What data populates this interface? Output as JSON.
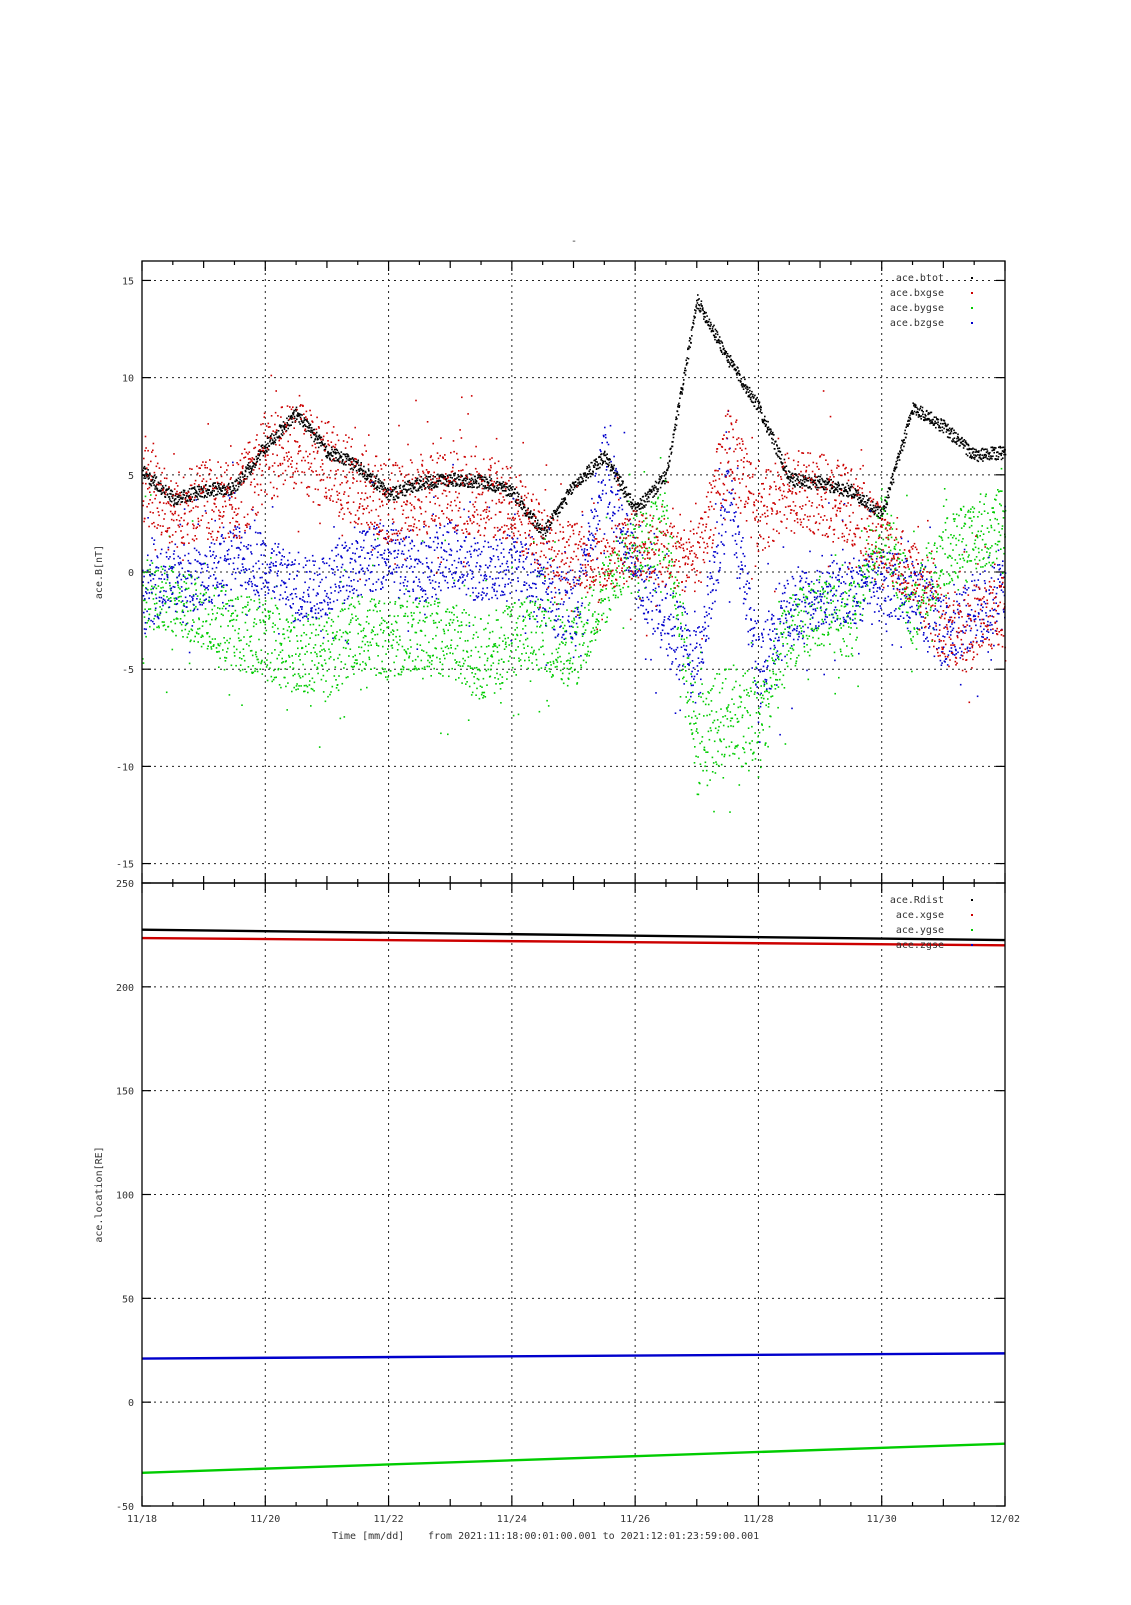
{
  "chart_title": "-",
  "footer": {
    "xlabel": "Time [mm/dd]",
    "range_text": "from 2021:11:18:00:01:00.001  to  2021:12:01:23:59:00.001"
  },
  "chart_data": [
    {
      "type": "scatter",
      "ylabel": "ace.B[nT]",
      "ylim": [
        -16,
        16
      ],
      "yticks": [
        15,
        10,
        5,
        0,
        -5,
        -10,
        -15
      ],
      "xlim": [
        "11/18",
        "12/02"
      ],
      "xticks": [
        "11/18",
        "11/20",
        "11/22",
        "11/24",
        "11/26",
        "11/28",
        "11/30",
        "12/02"
      ],
      "grid": true,
      "legend_position": "top-right",
      "colors": {
        "ace.btot": "#000000",
        "ace.bxgse": "#cc0000",
        "ace.bygse": "#00cc00",
        "ace.bzgse": "#0000cc"
      },
      "x": [
        0,
        0.5,
        1,
        1.5,
        2,
        2.5,
        3,
        3.5,
        4,
        4.5,
        5,
        5.5,
        6,
        6.5,
        7,
        7.5,
        8,
        8.5,
        9,
        9.5,
        10,
        10.5,
        11,
        11.5,
        12,
        12.5,
        13,
        13.5,
        14
      ],
      "series": [
        {
          "name": "ace.btot",
          "values": [
            5.2,
            3.8,
            4.2,
            4.4,
            6.5,
            8.2,
            6.2,
            5.5,
            4.0,
            4.6,
            4.8,
            4.7,
            4.2,
            2.0,
            4.5,
            6.0,
            3.2,
            5.0,
            14.0,
            11.0,
            8.5,
            4.8,
            4.6,
            4.2,
            3.0,
            8.5,
            7.5,
            6.0,
            6.2
          ]
        },
        {
          "name": "ace.bxgse",
          "values": [
            4.8,
            3.2,
            3.8,
            3.5,
            6.0,
            6.5,
            5.5,
            4.5,
            3.5,
            4.0,
            4.2,
            4.0,
            3.5,
            1.5,
            1.0,
            0.5,
            1.5,
            1.0,
            0.5,
            6.5,
            3.0,
            4.2,
            4.0,
            3.5,
            1.5,
            0.0,
            -3.0,
            -2.5,
            -2.0
          ]
        },
        {
          "name": "ace.bygse",
          "values": [
            -1.0,
            -1.5,
            -2.0,
            -3.0,
            -3.5,
            -4.0,
            -4.5,
            -3.0,
            -3.5,
            -3.0,
            -3.5,
            -4.5,
            -3.5,
            -3.0,
            -4.0,
            -1.0,
            1.5,
            2.5,
            -9.0,
            -7.0,
            -8.0,
            -3.0,
            -2.0,
            -2.5,
            2.5,
            -2.0,
            1.0,
            2.0,
            2.5
          ]
        },
        {
          "name": "ace.bzgse",
          "values": [
            -1.5,
            0.0,
            -0.5,
            1.0,
            0.5,
            -1.0,
            -0.5,
            0.5,
            1.0,
            0.0,
            1.0,
            0.0,
            0.5,
            -1.0,
            -2.0,
            5.5,
            0.0,
            -2.5,
            -5.0,
            4.0,
            -5.0,
            -2.0,
            -1.0,
            -1.0,
            -0.5,
            -1.0,
            -3.0,
            -2.0,
            -1.0
          ]
        }
      ]
    },
    {
      "type": "scatter",
      "ylabel": "ace.location[RE]",
      "ylim": [
        -50,
        250
      ],
      "yticks": [
        250,
        200,
        150,
        100,
        50,
        0,
        -50
      ],
      "xlim": [
        "11/18",
        "12/02"
      ],
      "xticks": [
        "11/18",
        "11/20",
        "11/22",
        "11/24",
        "11/26",
        "11/28",
        "11/30",
        "12/02"
      ],
      "grid": true,
      "legend_position": "top-right",
      "colors": {
        "ace.Rdist": "#000000",
        "ace.xgse": "#cc0000",
        "ace.ygse": "#00cc00",
        "ace.zgse": "#0000cc"
      },
      "x": [
        0,
        14
      ],
      "series": [
        {
          "name": "ace.Rdist",
          "values": [
            227.5,
            222.5
          ]
        },
        {
          "name": "ace.xgse",
          "values": [
            223.5,
            220.0
          ]
        },
        {
          "name": "ace.ygse",
          "values": [
            -34.0,
            -20.0
          ]
        },
        {
          "name": "ace.zgse",
          "values": [
            21.0,
            23.5
          ]
        }
      ]
    }
  ]
}
